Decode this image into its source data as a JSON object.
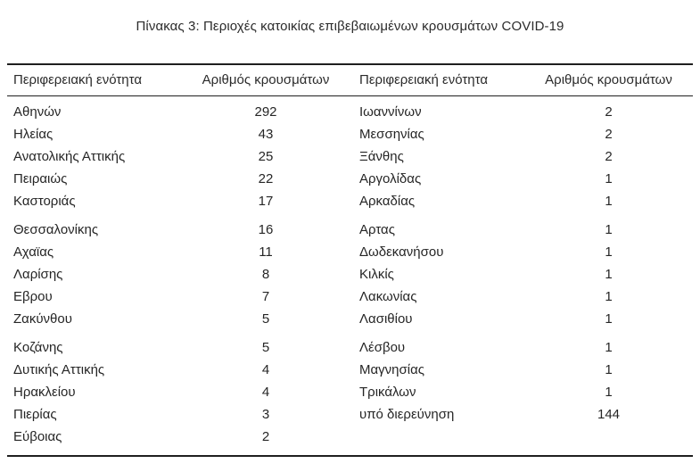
{
  "title": "Πίνακας 3: Περιοχές κατοικίας επιβεβαιωμένων κρουσμάτων COVID-19",
  "table": {
    "headers": [
      "Περιφερειακή ενότητα",
      "Αριθμός κρουσμάτων",
      "Περιφερειακή ενότητα",
      "Αριθμός κρουσμάτων"
    ],
    "rows": [
      {
        "left_region": "Αθηνών",
        "left_count": "292",
        "right_region": "Ιωαννίνων",
        "right_count": "2"
      },
      {
        "left_region": "Ηλείας",
        "left_count": "43",
        "right_region": "Μεσσηνίας",
        "right_count": "2"
      },
      {
        "left_region": "Ανατολικής Αττικής",
        "left_count": "25",
        "right_region": "Ξάνθης",
        "right_count": "2"
      },
      {
        "left_region": "Πειραιώς",
        "left_count": "22",
        "right_region": "Αργολίδας",
        "right_count": "1"
      },
      {
        "left_region": "Καστοριάς",
        "left_count": "17",
        "right_region": "Αρκαδίας",
        "right_count": "1"
      },
      {
        "left_region": "Θεσσαλονίκης",
        "left_count": "16",
        "right_region": "Αρτας",
        "right_count": "1"
      },
      {
        "left_region": "Αχαϊας",
        "left_count": "11",
        "right_region": "Δωδεκανήσου",
        "right_count": "1"
      },
      {
        "left_region": "Λαρίσης",
        "left_count": "8",
        "right_region": "Κιλκίς",
        "right_count": "1"
      },
      {
        "left_region": "Εβρου",
        "left_count": "7",
        "right_region": "Λακωνίας",
        "right_count": "1"
      },
      {
        "left_region": "Ζακύνθου",
        "left_count": "5",
        "right_region": "Λασιθίου",
        "right_count": "1"
      },
      {
        "left_region": "Κοζάνης",
        "left_count": "5",
        "right_region": "Λέσβου",
        "right_count": "1"
      },
      {
        "left_region": "Δυτικής Αττικής",
        "left_count": "4",
        "right_region": "Μαγνησίας",
        "right_count": "1"
      },
      {
        "left_region": "Ηρακλείου",
        "left_count": "4",
        "right_region": "Τρικάλων",
        "right_count": "1"
      },
      {
        "left_region": "Πιερίας",
        "left_count": "3",
        "right_region": "υπό διερεύνηση",
        "right_count": "144"
      },
      {
        "left_region": "Εύβοιας",
        "left_count": "2",
        "right_region": "",
        "right_count": ""
      }
    ]
  },
  "colors": {
    "text": "#262626",
    "rule": "#1f1f1f",
    "background": "#ffffff"
  }
}
